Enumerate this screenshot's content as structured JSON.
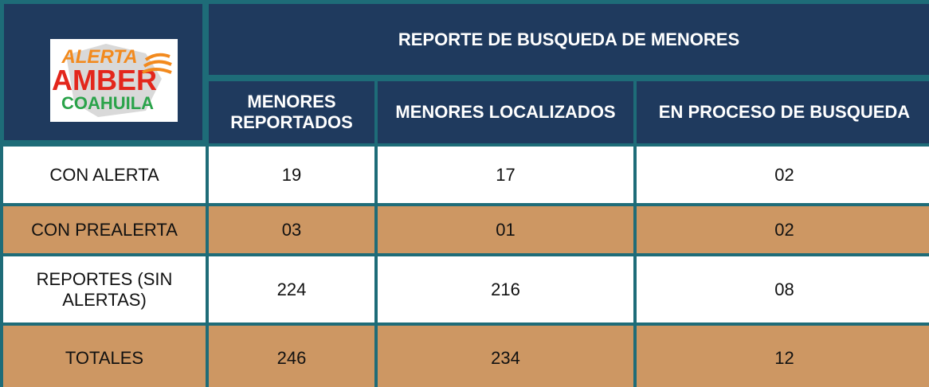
{
  "header": {
    "logo": [
      "ALERTA",
      "AMBER",
      "COAHUILA"
    ],
    "title": "REPORTE DE BUSQUEDA DE MENORES"
  },
  "table": {
    "columns": [
      "MENORES REPORTADOS",
      "MENORES LOCALIZADOS",
      "EN PROCESO DE BUSQUEDA"
    ],
    "rows": [
      [
        "CON ALERTA",
        "19",
        "17",
        "02"
      ],
      [
        "CON PREALERTA",
        "03",
        "01",
        "02"
      ],
      [
        "REPORTES (SIN ALERTAS)",
        "224",
        "216",
        "08"
      ],
      [
        "TOTALES",
        "246",
        "234",
        "12"
      ]
    ]
  }
}
